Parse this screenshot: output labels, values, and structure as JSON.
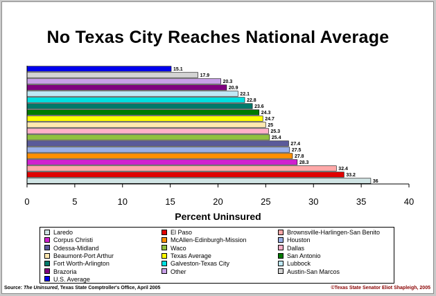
{
  "chart_data": {
    "type": "bar",
    "orientation": "horizontal",
    "title": "No Texas City Reaches National Average",
    "xlabel": "Percent Uninsured",
    "xlim": [
      0,
      40
    ],
    "xticks": [
      0,
      5,
      10,
      15,
      20,
      25,
      30,
      35,
      40
    ],
    "grid": false,
    "legend_position": "bottom",
    "bars": [
      {
        "name": "U.S. Average",
        "value": 15.1,
        "label": "15.1",
        "color": "#0000ee"
      },
      {
        "name": "Austin-San Marcos",
        "value": 17.9,
        "label": "17.9",
        "color": "#d4d4d4"
      },
      {
        "name": "Other",
        "value": 20.3,
        "label": "20.3",
        "color": "#c8a0e8"
      },
      {
        "name": "Brazoria",
        "value": 20.9,
        "label": "20.9",
        "color": "#800080"
      },
      {
        "name": "Lubbock",
        "value": 22.1,
        "label": "22.1",
        "color": "#bfe8f5"
      },
      {
        "name": "Galveston-Texas City",
        "value": 22.8,
        "label": "22.8",
        "color": "#00e0e0"
      },
      {
        "name": "Fort Worth-Arlington",
        "value": 23.6,
        "label": "23.6",
        "color": "#007a6a"
      },
      {
        "name": "San Antonio",
        "value": 24.3,
        "label": "24.3",
        "color": "#007a00"
      },
      {
        "name": "Texas Average",
        "value": 24.7,
        "label": "24.7",
        "color": "#ffff00"
      },
      {
        "name": "Beaumont-Port Arthur",
        "value": 25.0,
        "label": "25",
        "color": "#ffe8b0"
      },
      {
        "name": "Dallas",
        "value": 25.3,
        "label": "25.3",
        "color": "#ffb0c8"
      },
      {
        "name": "Waco",
        "value": 25.4,
        "label": "25.4",
        "color": "#90c040"
      },
      {
        "name": "Odessa-Midland",
        "value": 27.4,
        "label": "27.4",
        "color": "#5a5a9a"
      },
      {
        "name": "Houston",
        "value": 27.5,
        "label": "27.5",
        "color": "#9ab0e8"
      },
      {
        "name": "McAllen-Edinburgh-Mission",
        "value": 27.8,
        "label": "27.8",
        "color": "#ff9000"
      },
      {
        "name": "Corpus Christi",
        "value": 28.3,
        "label": "28.3",
        "color": "#d020d0"
      },
      {
        "name": "Brownsville-Harlingen-San Benito",
        "value": 32.4,
        "label": "32.4",
        "color": "#ffa8a8"
      },
      {
        "name": "El Paso",
        "value": 33.2,
        "label": "33.2",
        "color": "#e00000"
      },
      {
        "name": "Laredo",
        "value": 36.0,
        "label": "36",
        "color": "#d0e4e4"
      }
    ]
  },
  "legend": {
    "items": [
      {
        "label": "Laredo",
        "color": "#d0e4e4"
      },
      {
        "label": "El Paso",
        "color": "#e00000"
      },
      {
        "label": "Brownsville-Harlingen-San Benito",
        "color": "#ffa8a8"
      },
      {
        "label": "Corpus Christi",
        "color": "#d020d0"
      },
      {
        "label": "McAllen-Edinburgh-Mission",
        "color": "#ff9000"
      },
      {
        "label": "Houston",
        "color": "#9ab0e8"
      },
      {
        "label": "Odessa-Midland",
        "color": "#5a5a9a"
      },
      {
        "label": "Waco",
        "color": "#90c040"
      },
      {
        "label": "Dallas",
        "color": "#ffb0c8"
      },
      {
        "label": "Beaumont-Port Arthur",
        "color": "#ffe8b0"
      },
      {
        "label": "Texas Average",
        "color": "#ffff00"
      },
      {
        "label": "San Antonio",
        "color": "#007a00"
      },
      {
        "label": "Fort Worth-Arlington",
        "color": "#007a6a"
      },
      {
        "label": "Galveston-Texas City",
        "color": "#00e0e0"
      },
      {
        "label": "Lubbock",
        "color": "#bfe8f5"
      },
      {
        "label": "Brazoria",
        "color": "#800080"
      },
      {
        "label": "Other",
        "color": "#c8a0e8"
      },
      {
        "label": "Austin-San Marcos",
        "color": "#d4d4d4"
      },
      {
        "label": "U.S. Average",
        "color": "#0000ee"
      }
    ]
  },
  "footer": {
    "source_prefix": "Source:  ",
    "source_title": "The Uninsured",
    "source_suffix": ", Texas State Comptroller's Office, April 2005",
    "copyright": "©Texas State Senator Eliot Shapleigh, 2005"
  }
}
